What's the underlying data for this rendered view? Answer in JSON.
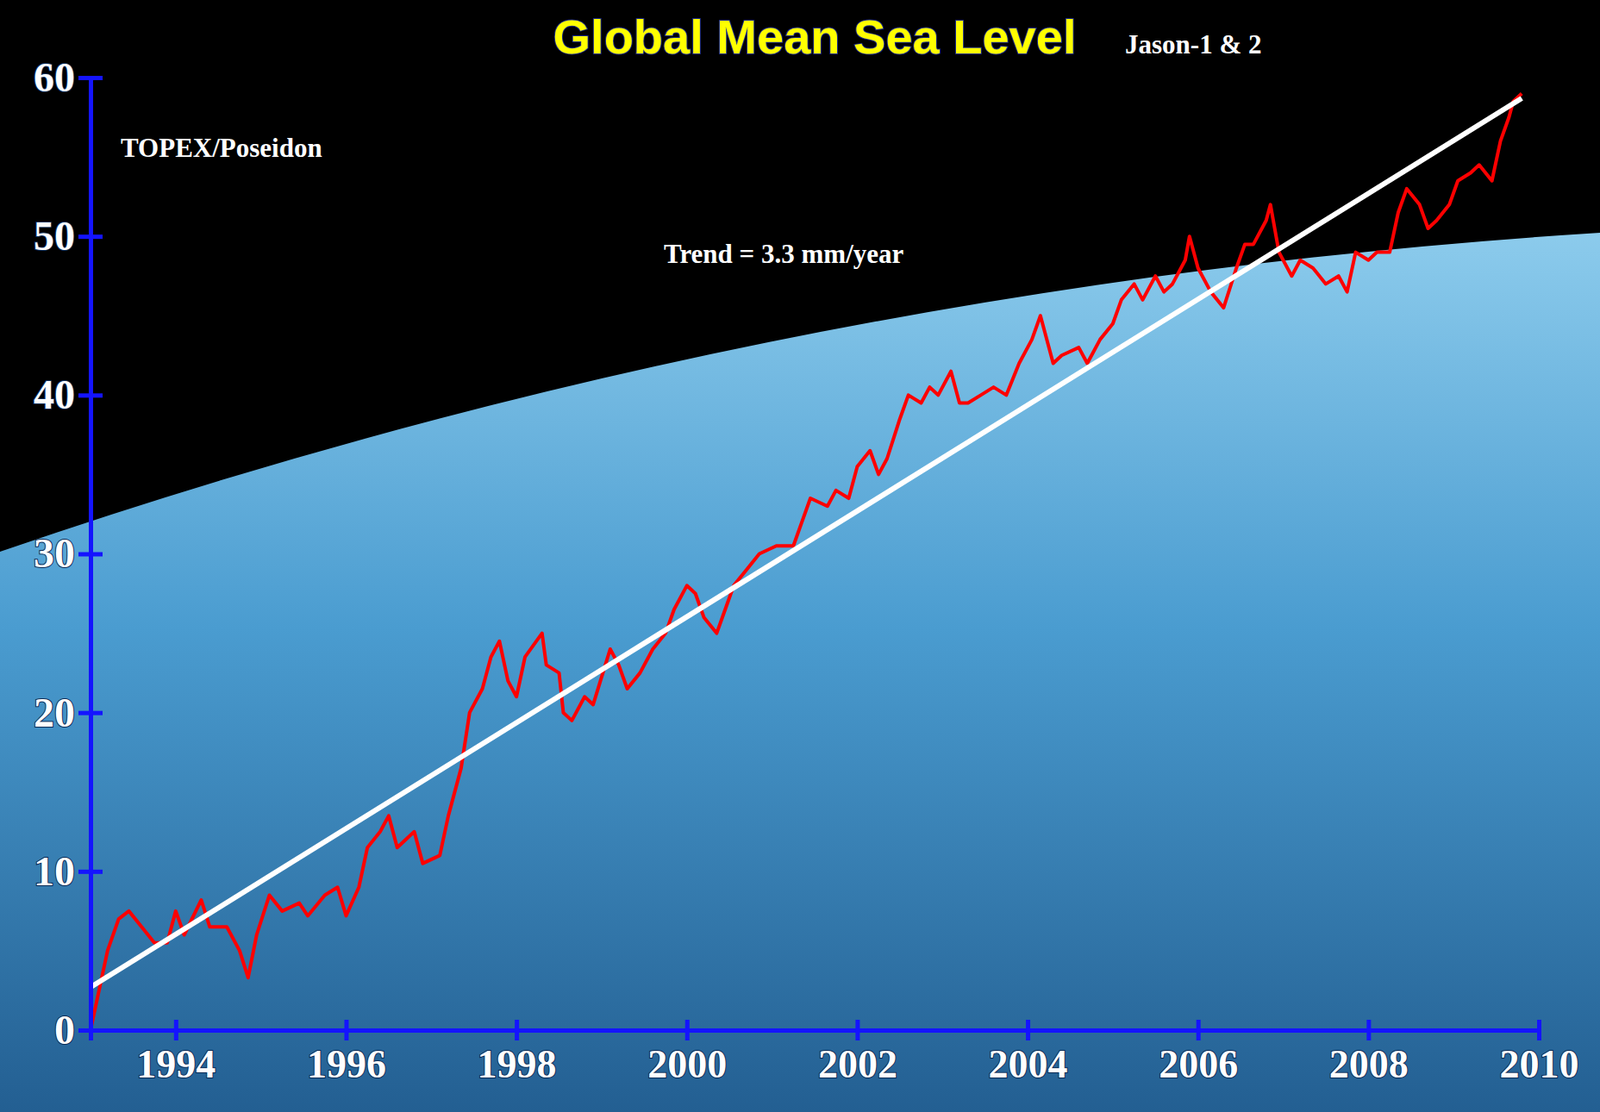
{
  "chart_data": {
    "type": "line",
    "title": "Global Mean Sea Level",
    "annotations": [
      "TOPEX/Poseidon",
      "Jason-1 & 2",
      "Trend = 3.3 mm/year"
    ],
    "xlim": [
      1993,
      2010
    ],
    "xticks": [
      1994,
      1996,
      1998,
      2000,
      2002,
      2004,
      2006,
      2008,
      2010
    ],
    "ylim": [
      0,
      60
    ],
    "yticks": [
      0,
      10,
      20,
      30,
      40,
      50,
      60
    ],
    "grid": false,
    "series": [
      {
        "color": "#ff0000",
        "x": [
          1993.0,
          1993.2,
          1993.33,
          1993.45,
          1993.6,
          1993.75,
          1993.9,
          1994.0,
          1994.1,
          1994.3,
          1994.4,
          1994.6,
          1994.75,
          1994.85,
          1994.95,
          1995.1,
          1995.25,
          1995.45,
          1995.55,
          1995.75,
          1995.9,
          1996.0,
          1996.15,
          1996.25,
          1996.4,
          1996.5,
          1996.6,
          1996.8,
          1996.9,
          1997.1,
          1997.2,
          1997.35,
          1997.45,
          1997.6,
          1997.7,
          1997.8,
          1997.9,
          1998.0,
          1998.1,
          1998.3,
          1998.35,
          1998.5,
          1998.55,
          1998.65,
          1998.8,
          1998.9,
          1999.1,
          1999.2,
          1999.3,
          1999.45,
          1999.6,
          1999.75,
          1999.85,
          2000.0,
          2000.1,
          2000.2,
          2000.35,
          2000.45,
          2000.55,
          2000.7,
          2000.85,
          2001.05,
          2001.25,
          2001.35,
          2001.45,
          2001.65,
          2001.75,
          2001.9,
          2002.0,
          2002.15,
          2002.25,
          2002.35,
          2002.5,
          2002.6,
          2002.75,
          2002.85,
          2002.95,
          2003.1,
          2003.2,
          2003.3,
          2003.45,
          2003.6,
          2003.75,
          2003.9,
          2004.05,
          2004.15,
          2004.3,
          2004.4,
          2004.6,
          2004.7,
          2004.85,
          2005.0,
          2005.1,
          2005.25,
          2005.35,
          2005.5,
          2005.6,
          2005.7,
          2005.85,
          2005.9,
          2006.0,
          2006.15,
          2006.3,
          2006.45,
          2006.55,
          2006.65,
          2006.8,
          2006.85,
          2006.95,
          2007.1,
          2007.2,
          2007.35,
          2007.5,
          2007.65,
          2007.75,
          2007.85,
          2008.0,
          2008.1,
          2008.25,
          2008.35,
          2008.45,
          2008.6,
          2008.7,
          2008.8,
          2008.95,
          2009.05,
          2009.2,
          2009.3,
          2009.45,
          2009.55,
          2009.65,
          2009.7,
          2009.8
        ],
        "values": [
          0,
          5,
          7,
          7.5,
          6.5,
          5.5,
          5.5,
          7.5,
          6,
          8.2,
          6.5,
          6.5,
          5,
          3.3,
          6,
          8.5,
          7.5,
          8,
          7.2,
          8.5,
          9,
          7.2,
          9,
          11.5,
          12.5,
          13.5,
          11.5,
          12.5,
          10.5,
          11,
          13.5,
          16.5,
          20,
          21.5,
          23.5,
          24.5,
          22,
          21,
          23.5,
          25,
          23,
          22.5,
          20,
          19.5,
          21,
          20.5,
          24,
          23,
          21.5,
          22.5,
          24,
          25,
          26.5,
          28,
          27.5,
          26,
          25,
          26.5,
          28,
          29,
          30,
          30.5,
          30.5,
          32,
          33.5,
          33,
          34,
          33.5,
          35.5,
          36.5,
          35,
          36,
          38.5,
          40,
          39.5,
          40.5,
          40,
          41.5,
          39.5,
          39.5,
          40,
          40.5,
          40,
          42,
          43.5,
          45,
          42,
          42.5,
          43,
          42,
          43.5,
          44.5,
          46,
          47,
          46,
          47.5,
          46.5,
          47,
          48.5,
          50,
          48,
          46.5,
          45.5,
          48,
          49.5,
          49.5,
          51,
          52,
          49,
          47.5,
          48.5,
          48,
          47,
          47.5,
          46.5,
          49,
          48.5,
          49,
          49,
          51.5,
          53,
          52,
          50.5,
          51,
          52,
          53.5,
          54,
          54.5,
          53.5,
          56,
          57.5,
          58.5,
          59
        ]
      },
      {
        "color": "#ffffff",
        "x": [
          1993.0,
          2009.8
        ],
        "values": [
          2.7,
          58.7
        ]
      }
    ]
  }
}
